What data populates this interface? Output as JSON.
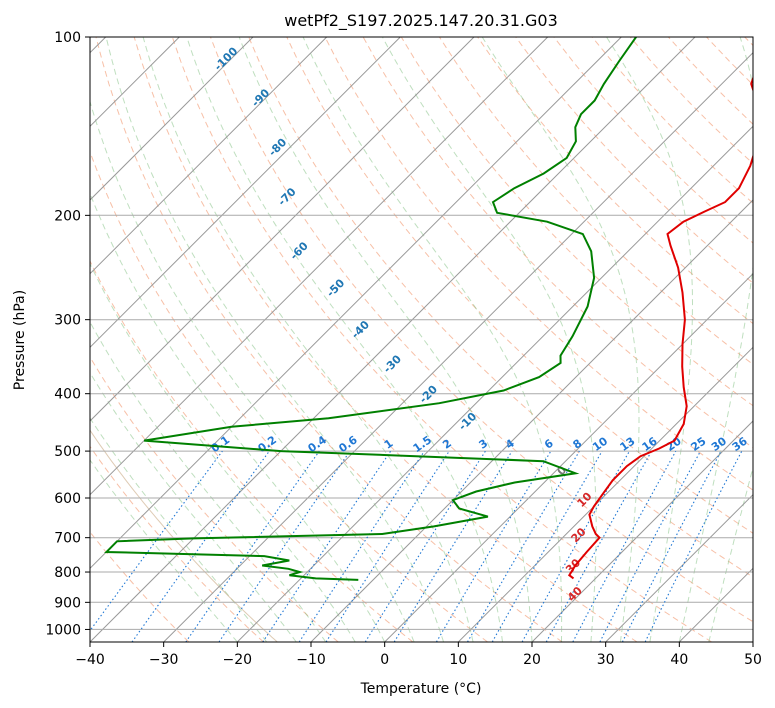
{
  "chart_data": {
    "type": "line",
    "title": "wetPf2_S197.2025.147.20.31.G03",
    "xlabel": "Temperature (°C)",
    "ylabel": "Pressure (hPa)",
    "xlim": [
      -40,
      50
    ],
    "ylim": [
      1050,
      100
    ],
    "y_scale": "log",
    "skew": true,
    "grid": true,
    "x_ticks": [
      -40,
      -30,
      -20,
      -10,
      0,
      10,
      20,
      30,
      40,
      50
    ],
    "y_ticks": [
      100,
      200,
      300,
      400,
      500,
      600,
      700,
      800,
      900,
      1000
    ],
    "series": [
      {
        "role": "temperature",
        "color": "#e00000",
        "points": [
          [
            17.0,
            820
          ],
          [
            16.0,
            810
          ],
          [
            15.5,
            780
          ],
          [
            15.2,
            740
          ],
          [
            15.0,
            700
          ],
          [
            14.0,
            690
          ],
          [
            12.5,
            670
          ],
          [
            10.5,
            640
          ],
          [
            10.0,
            620
          ],
          [
            9.5,
            590
          ],
          [
            9.0,
            560
          ],
          [
            9.0,
            530
          ],
          [
            9.5,
            510
          ],
          [
            11.0,
            495
          ],
          [
            12.0,
            480
          ],
          [
            11.0,
            450
          ],
          [
            9.0,
            420
          ],
          [
            6.0,
            390
          ],
          [
            3.0,
            360
          ],
          [
            0.0,
            330
          ],
          [
            -3.0,
            300
          ],
          [
            -7.0,
            270
          ],
          [
            -11.0,
            245
          ],
          [
            -15.0,
            225
          ],
          [
            -17.0,
            215
          ],
          [
            -16.5,
            205
          ],
          [
            -15.0,
            197
          ],
          [
            -13.5,
            190
          ],
          [
            -13.5,
            180
          ],
          [
            -15.0,
            165
          ],
          [
            -17.0,
            152
          ],
          [
            -20.0,
            140
          ],
          [
            -23.0,
            128
          ],
          [
            -26.0,
            120
          ],
          [
            -28.0,
            110
          ],
          [
            -30.0,
            100
          ]
        ]
      },
      {
        "role": "dewpoint",
        "color": "#008000",
        "points": [
          [
            -12.0,
            825
          ],
          [
            -18.0,
            820
          ],
          [
            -22.0,
            810
          ],
          [
            -21.0,
            800
          ],
          [
            -23.0,
            790
          ],
          [
            -27.0,
            780
          ],
          [
            -24.0,
            765
          ],
          [
            -28.0,
            752
          ],
          [
            -50.0,
            740
          ],
          [
            -50.0,
            710
          ],
          [
            -40.0,
            702
          ],
          [
            -15.0,
            690
          ],
          [
            -9.0,
            670
          ],
          [
            -3.0,
            645
          ],
          [
            -8.0,
            625
          ],
          [
            -10.0,
            605
          ],
          [
            -8.0,
            585
          ],
          [
            -4.0,
            565
          ],
          [
            3.0,
            545
          ],
          [
            -3.0,
            520
          ],
          [
            -30.0,
            505
          ],
          [
            -40.0,
            500
          ],
          [
            -60.0,
            480
          ],
          [
            -50.0,
            455
          ],
          [
            -38.0,
            440
          ],
          [
            -25.0,
            415
          ],
          [
            -18.0,
            395
          ],
          [
            -15.0,
            375
          ],
          [
            -14.0,
            355
          ],
          [
            -15.0,
            345
          ],
          [
            -16.0,
            320
          ],
          [
            -18.0,
            285
          ],
          [
            -21.0,
            255
          ],
          [
            -25.0,
            230
          ],
          [
            -28.5,
            215
          ],
          [
            -35.0,
            205
          ],
          [
            -43.0,
            198
          ],
          [
            -45.0,
            190
          ],
          [
            -44.0,
            180
          ],
          [
            -42.0,
            170
          ],
          [
            -41.0,
            160
          ],
          [
            -42.0,
            150
          ],
          [
            -44.0,
            142
          ],
          [
            -45.0,
            135
          ],
          [
            -45.0,
            128
          ],
          [
            -46.0,
            120
          ],
          [
            -47.0,
            110
          ],
          [
            -48.0,
            100
          ]
        ]
      }
    ],
    "height_labels": {
      "values": [
        "-100",
        "-90",
        "-80",
        "-70",
        "-60",
        "-50",
        "-40",
        "-30",
        "-20",
        "-10"
      ]
    },
    "mixing_ratio_labels": {
      "values": [
        "0.1",
        "0.2",
        "0.4",
        "0.6",
        "1",
        "1.5",
        "2",
        "3",
        "4",
        "6",
        "8",
        "10",
        "13",
        "16",
        "20",
        "25",
        "30",
        "36"
      ]
    },
    "reference_labels": {
      "values": [
        "0",
        "10",
        "20",
        "30",
        "40"
      ]
    }
  }
}
